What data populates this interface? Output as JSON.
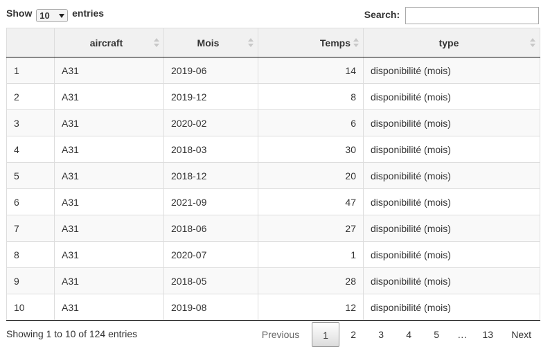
{
  "length": {
    "show_label": "Show",
    "selected": "10",
    "entries_label": "entries"
  },
  "search": {
    "label": "Search:",
    "value": ""
  },
  "table": {
    "headers": [
      "",
      "aircraft",
      "Mois",
      "Temps",
      "type"
    ],
    "rows": [
      [
        "1",
        "A31",
        "2019-06",
        "14",
        "disponibilité (mois)"
      ],
      [
        "2",
        "A31",
        "2019-12",
        "8",
        "disponibilité (mois)"
      ],
      [
        "3",
        "A31",
        "2020-02",
        "6",
        "disponibilité (mois)"
      ],
      [
        "4",
        "A31",
        "2018-03",
        "30",
        "disponibilité (mois)"
      ],
      [
        "5",
        "A31",
        "2018-12",
        "20",
        "disponibilité (mois)"
      ],
      [
        "6",
        "A31",
        "2021-09",
        "47",
        "disponibilité (mois)"
      ],
      [
        "7",
        "A31",
        "2018-06",
        "27",
        "disponibilité (mois)"
      ],
      [
        "8",
        "A31",
        "2020-07",
        "1",
        "disponibilité (mois)"
      ],
      [
        "9",
        "A31",
        "2018-05",
        "28",
        "disponibilité (mois)"
      ],
      [
        "10",
        "A31",
        "2019-08",
        "12",
        "disponibilité (mois)"
      ]
    ]
  },
  "info": "Showing 1 to 10 of 124 entries",
  "pagination": {
    "previous": "Previous",
    "pages": [
      "1",
      "2",
      "3",
      "4",
      "5"
    ],
    "ellipsis": "…",
    "last": "13",
    "next": "Next",
    "current": "1"
  }
}
